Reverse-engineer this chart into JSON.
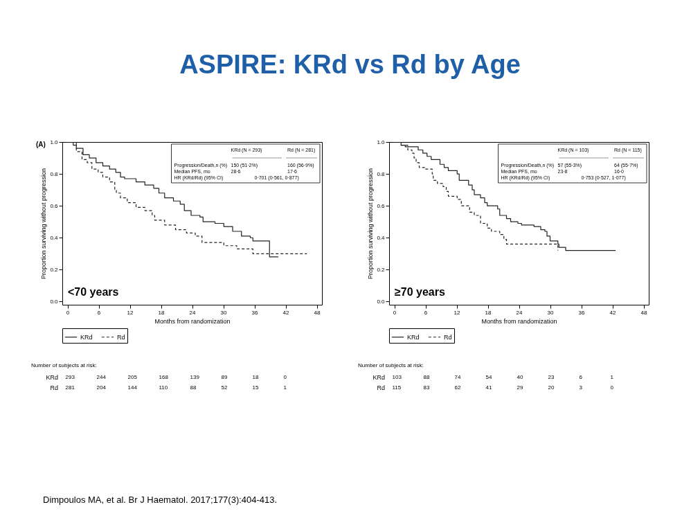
{
  "chart_data": [
    {
      "type": "step",
      "title": "ASPIRE: KRd vs Rd by Age",
      "xlabel": "Months from randomization",
      "ylabel": "Proportion surviving without progression",
      "xlim": [
        -1,
        49
      ],
      "xticks": [
        0,
        6,
        12,
        18,
        24,
        30,
        36,
        42,
        48
      ],
      "ylim": [
        -0.02,
        1.0
      ],
      "yticks": [
        {
          "value": 0,
          "label": "0.0"
        },
        {
          "value": 0.2,
          "label": "0.2"
        },
        {
          "value": 0.4,
          "label": "0.4"
        },
        {
          "value": 0.6,
          "label": "0.6"
        },
        {
          "value": 0.8,
          "label": "0.8"
        },
        {
          "value": 1.0,
          "label": "1.0"
        }
      ],
      "legend": "bottom",
      "series": [
        {
          "name": "KRd",
          "color": "#222222",
          "line_style": "solid",
          "x": [
            0,
            1.1,
            1.7,
            3.0,
            4.2,
            5.5,
            6.8,
            8.1,
            9.3,
            10.2,
            11.0,
            13.2,
            14.9,
            16.6,
            17.6,
            18.7,
            20.4,
            21.7,
            22.5,
            23.8,
            25.5,
            26.1,
            28.4,
            30.1,
            31.8,
            33.5,
            35.2,
            35.7,
            38.9,
            40.6
          ],
          "values": [
            1.0,
            0.98,
            0.96,
            0.92,
            0.9,
            0.87,
            0.85,
            0.83,
            0.81,
            0.78,
            0.77,
            0.75,
            0.73,
            0.71,
            0.68,
            0.65,
            0.63,
            0.61,
            0.57,
            0.54,
            0.53,
            0.5,
            0.49,
            0.47,
            0.44,
            0.41,
            0.4,
            0.38,
            0.28,
            0.28
          ]
        },
        {
          "name": "Rd",
          "color": "#222222",
          "line_style": "dashed",
          "x": [
            0,
            1.7,
            2.8,
            3.8,
            4.7,
            5.9,
            6.8,
            8.1,
            9.1,
            9.4,
            10.2,
            11.5,
            13.2,
            14.9,
            16.3,
            16.8,
            18.7,
            20.8,
            22.9,
            24.6,
            25.9,
            28.4,
            30.1,
            32.6,
            35.2,
            35.7,
            46.1
          ],
          "values": [
            1.0,
            0.94,
            0.89,
            0.87,
            0.83,
            0.81,
            0.78,
            0.75,
            0.7,
            0.68,
            0.65,
            0.62,
            0.59,
            0.57,
            0.54,
            0.51,
            0.48,
            0.45,
            0.43,
            0.41,
            0.37,
            0.37,
            0.35,
            0.33,
            0.33,
            0.3,
            0.3
          ]
        }
      ],
      "annotations": [
        "<70 years",
        "KRd (N = 293)",
        "Rd (N = 281)",
        "Progression/Death,n (%)",
        "150 (51·2%)",
        "160 (56·9%)",
        "Median PFS, mo",
        "28·6",
        "17·6",
        "HR (KRd/Rd) (95% CI)",
        "0·701 (0·561, 0·877)",
        "Number of subjects at risk:",
        "KRd",
        "293",
        "244",
        "205",
        "168",
        "139",
        "89",
        "18",
        "0",
        "Rd",
        "281",
        "204",
        "144",
        "110",
        "88",
        "52",
        "15",
        "1",
        "(A)"
      ]
    },
    {
      "type": "step",
      "xlabel": "Months from randomization",
      "ylabel": "Proportion surviving without progression",
      "xlim": [
        -1,
        49
      ],
      "xticks": [
        0,
        6,
        12,
        18,
        24,
        30,
        36,
        42,
        48
      ],
      "ylim": [
        -0.02,
        1.0
      ],
      "yticks": [
        {
          "value": 0,
          "label": "0.0"
        },
        {
          "value": 0.2,
          "label": "0.2"
        },
        {
          "value": 0.4,
          "label": "0.4"
        },
        {
          "value": 0.6,
          "label": "0.6"
        },
        {
          "value": 0.8,
          "label": "0.8"
        },
        {
          "value": 1.0,
          "label": "1.0"
        }
      ],
      "legend": "bottom",
      "series": [
        {
          "name": "KRd",
          "color": "#222222",
          "line_style": "solid",
          "x": [
            0,
            1.3,
            2.1,
            3.4,
            4.6,
            5.5,
            6.3,
            7.1,
            8.8,
            9.6,
            10.4,
            12.1,
            12.5,
            14.3,
            15.0,
            15.4,
            16.6,
            17.4,
            17.9,
            19.9,
            20.3,
            21.6,
            22.4,
            23.8,
            24.5,
            26.9,
            28.2,
            29.0,
            29.4,
            30.0,
            31.5,
            31.7,
            33.0,
            42.6
          ],
          "values": [
            1.0,
            0.98,
            0.97,
            0.97,
            0.95,
            0.93,
            0.91,
            0.89,
            0.86,
            0.84,
            0.82,
            0.8,
            0.76,
            0.73,
            0.7,
            0.67,
            0.65,
            0.62,
            0.6,
            0.58,
            0.54,
            0.52,
            0.5,
            0.49,
            0.48,
            0.47,
            0.45,
            0.44,
            0.41,
            0.38,
            0.36,
            0.34,
            0.32,
            0.32
          ]
        },
        {
          "name": "Rd",
          "color": "#222222",
          "line_style": "dashed",
          "x": [
            0,
            1.3,
            2.6,
            3.4,
            3.8,
            4.2,
            4.8,
            5.9,
            7.3,
            7.5,
            8.3,
            9.4,
            10.0,
            10.4,
            12.1,
            12.9,
            14.5,
            15.4,
            16.6,
            17.9,
            18.7,
            20.3,
            21.1,
            21.6,
            31.1,
            31.5
          ],
          "values": [
            1.0,
            0.98,
            0.95,
            0.93,
            0.9,
            0.87,
            0.84,
            0.83,
            0.8,
            0.76,
            0.74,
            0.72,
            0.69,
            0.66,
            0.64,
            0.6,
            0.56,
            0.54,
            0.49,
            0.46,
            0.44,
            0.42,
            0.39,
            0.36,
            0.36,
            0.32
          ]
        }
      ],
      "annotations": [
        "≥70 years",
        "KRd (N = 103)",
        "Rd (N = 115)",
        "Progression/Death,n (%)",
        "57 (55·3%)",
        "64 (55·7%)",
        "Median PFS, mo",
        "23·8",
        "16·0",
        "HR (KRd/Rd) (95% CI)",
        "0·753 (0·527, 1·077)",
        "Number of subjects at risk:",
        "KRd",
        "103",
        "88",
        "74",
        "54",
        "40",
        "23",
        "6",
        "1",
        "Rd",
        "115",
        "83",
        "62",
        "41",
        "29",
        "20",
        "3",
        "0",
        "Dimpoulos MA, et al. Br J Haematol. 2017;177(3):404-413."
      ]
    }
  ]
}
